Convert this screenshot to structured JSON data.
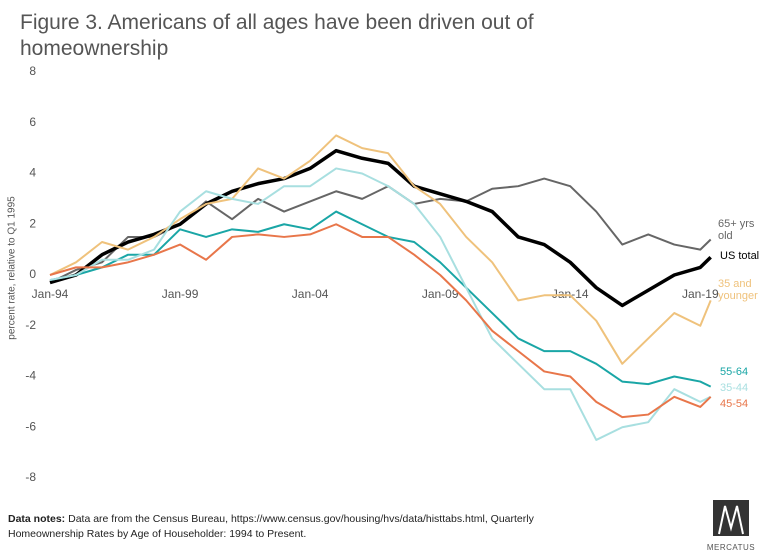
{
  "chart_data": {
    "type": "line",
    "title": "Figure 3. Americans of all ages have been driven out of homeownership",
    "y_label": "percent rate, relative to Q1 1995",
    "x": [
      1994,
      1995,
      1996,
      1997,
      1998,
      1999,
      2000,
      2001,
      2002,
      2003,
      2004,
      2005,
      2006,
      2007,
      2008,
      2009,
      2010,
      2011,
      2012,
      2013,
      2014,
      2015,
      2016,
      2017,
      2018,
      2019,
      2019.4
    ],
    "xlim": [
      1994,
      2019.45
    ],
    "xticks": [
      {
        "value": 1994,
        "label": "Jan-94"
      },
      {
        "value": 1999,
        "label": "Jan-99"
      },
      {
        "value": 2004,
        "label": "Jan-04"
      },
      {
        "value": 2009,
        "label": "Jan-09"
      },
      {
        "value": 2014,
        "label": "Jan-14"
      },
      {
        "value": 2019,
        "label": "Jan-19"
      }
    ],
    "ylim": [
      -8,
      8
    ],
    "yticks": [
      8,
      6,
      4,
      2,
      0,
      -2,
      -4,
      -6,
      -8
    ],
    "grid": false,
    "series": [
      {
        "name": "65+ yrs old",
        "color": "#666666",
        "width": 2,
        "values": [
          -0.3,
          0.2,
          0.5,
          1.5,
          1.5,
          2.0,
          2.9,
          2.2,
          3.0,
          2.5,
          2.9,
          3.3,
          3.0,
          3.5,
          2.8,
          3.0,
          2.9,
          3.4,
          3.5,
          3.8,
          3.5,
          2.5,
          1.2,
          1.6,
          1.2,
          1.0,
          1.4
        ]
      },
      {
        "name": "US total",
        "color": "#000000",
        "width": 3.5,
        "values": [
          -0.3,
          0.0,
          0.8,
          1.3,
          1.6,
          2.0,
          2.8,
          3.3,
          3.6,
          3.8,
          4.2,
          4.9,
          4.6,
          4.4,
          3.5,
          3.2,
          2.9,
          2.5,
          1.5,
          1.2,
          0.5,
          -0.5,
          -1.2,
          -0.6,
          0.0,
          0.3,
          0.7
        ]
      },
      {
        "name": "35 and younger",
        "color": "#efc27c",
        "width": 2,
        "values": [
          0.0,
          0.5,
          1.3,
          1.0,
          1.5,
          2.2,
          2.8,
          3.0,
          4.2,
          3.8,
          4.5,
          5.5,
          5.0,
          4.8,
          3.5,
          2.8,
          1.5,
          0.5,
          -1.0,
          -0.8,
          -0.8,
          -1.8,
          -3.5,
          -2.5,
          -1.5,
          -2.0,
          -1.0
        ]
      },
      {
        "name": "55-64",
        "color": "#1aa6a6",
        "width": 2,
        "values": [
          -0.2,
          0.0,
          0.3,
          0.8,
          0.8,
          1.8,
          1.5,
          1.8,
          1.7,
          2.0,
          1.8,
          2.5,
          2.0,
          1.5,
          1.3,
          0.5,
          -0.5,
          -1.5,
          -2.5,
          -3.0,
          -3.0,
          -3.5,
          -4.2,
          -4.3,
          -4.0,
          -4.2,
          -4.4
        ]
      },
      {
        "name": "35-44",
        "color": "#a8dfe0",
        "width": 2,
        "values": [
          -0.2,
          0.0,
          0.6,
          0.6,
          1.0,
          2.5,
          3.3,
          3.0,
          2.8,
          3.5,
          3.5,
          4.2,
          4.0,
          3.5,
          2.8,
          1.5,
          -0.5,
          -2.5,
          -3.5,
          -4.5,
          -4.5,
          -6.5,
          -6.0,
          -5.8,
          -4.5,
          -5.0,
          -4.8
        ]
      },
      {
        "name": "45-54",
        "color": "#e8764a",
        "width": 2,
        "values": [
          0.0,
          0.3,
          0.3,
          0.5,
          0.8,
          1.2,
          0.6,
          1.5,
          1.6,
          1.5,
          1.6,
          2.0,
          1.5,
          1.5,
          0.8,
          0.0,
          -1.0,
          -2.2,
          -3.0,
          -3.8,
          -4.0,
          -5.0,
          -5.6,
          -5.5,
          -4.8,
          -5.2,
          -4.8
        ]
      }
    ],
    "note_label": "Data notes:",
    "note_text": "Data are from the Census Bureau, https://www.census.gov/housing/hvs/data/histtabs.html, Quarterly Homeownership Rates by Age of Householder: 1994 to Present.",
    "logo_text": "MERCATUS"
  }
}
